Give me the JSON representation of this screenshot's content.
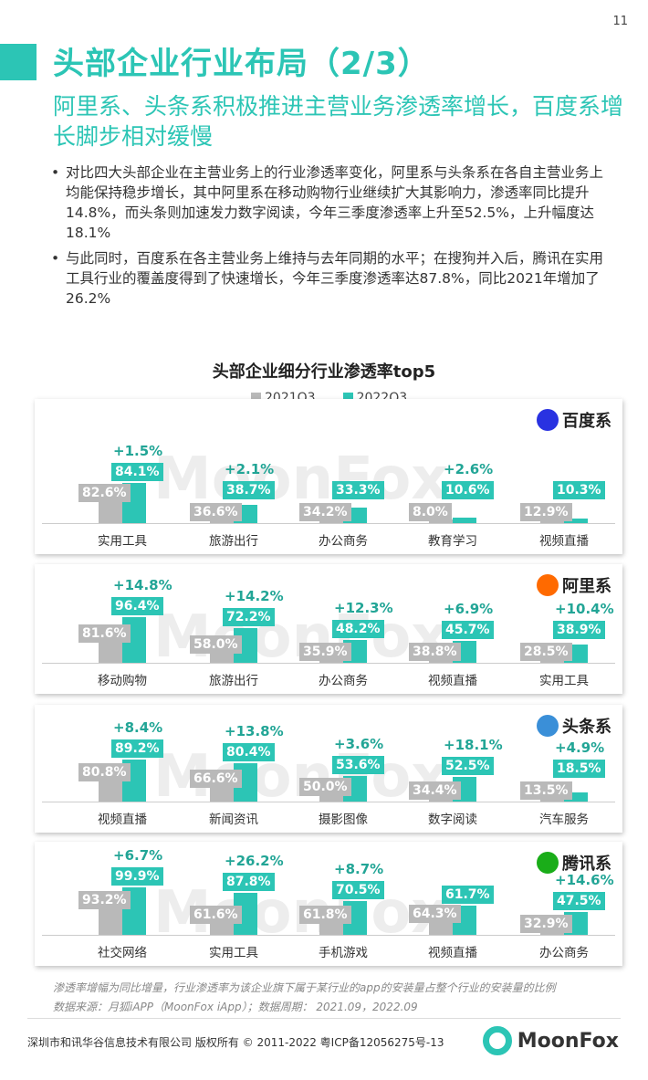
{
  "page_number": "11",
  "title": "头部企业行业布局（2/3）",
  "subtitle": "阿里系、头条系积极推进主营业务渗透率增长，百度系增长脚步相对缓慢",
  "bullets": [
    "对比四大头部企业在主营业务上的行业渗透率变化，阿里系与头条系在各自主营业务上均能保持稳步增长，其中阿里系在移动购物行业继续扩大其影响力，渗透率同比提升14.8%，而头条则加速发力数字阅读，今年三季度渗透率上升至52.5%，上升幅度达18.1%",
    "与此同时，百度系在各主营业务上维持与去年同期的水平；在搜狗并入后，腾讯在实用工具行业的覆盖度得到了快速增长，今年三季度渗透率达87.8%，同比2021年增加了26.2%"
  ],
  "watermark": "MoonFox",
  "chart_data": {
    "type": "bar",
    "title": "头部企业细分行业渗透率top5",
    "legend": [
      "2021Q3",
      "2022Q3"
    ],
    "colors": {
      "2021Q3": "#b9b9b9",
      "2022Q3": "#2cc5b5"
    },
    "panels": [
      {
        "company": "百度系",
        "logo_color": "#2932e1",
        "categories": [
          "实用工具",
          "旅游出行",
          "办公商务",
          "教育学习",
          "视频直播"
        ],
        "v2021": [
          82.6,
          36.6,
          34.2,
          8.0,
          12.9
        ],
        "v2022": [
          84.1,
          38.7,
          33.3,
          10.6,
          10.3
        ],
        "labels2021": [
          "82.6%",
          "36.6%",
          "34.2%",
          "8.0%",
          "12.9%"
        ],
        "labels2022": [
          "84.1%",
          "38.7%",
          "33.3%",
          "10.6%",
          "10.3%"
        ],
        "deltas": [
          "+1.5%",
          "+2.1%",
          "",
          "+2.6%",
          ""
        ]
      },
      {
        "company": "阿里系",
        "logo_color": "#ff6a00",
        "categories": [
          "移动购物",
          "旅游出行",
          "办公商务",
          "视频直播",
          "实用工具"
        ],
        "v2021": [
          81.6,
          58.0,
          35.9,
          38.8,
          28.5
        ],
        "v2022": [
          96.4,
          72.2,
          48.2,
          45.7,
          38.9
        ],
        "labels2021": [
          "81.6%",
          "58.0%",
          "35.9%",
          "38.8%",
          "28.5%"
        ],
        "labels2022": [
          "96.4%",
          "72.2%",
          "48.2%",
          "45.7%",
          "38.9%"
        ],
        "deltas": [
          "+14.8%",
          "+14.2%",
          "+12.3%",
          "+6.9%",
          "+10.4%"
        ]
      },
      {
        "company": "头条系",
        "logo_color": "#3a8fd8",
        "categories": [
          "视频直播",
          "新闻资讯",
          "摄影图像",
          "数字阅读",
          "汽车服务"
        ],
        "v2021": [
          80.8,
          66.6,
          50.0,
          34.4,
          13.5
        ],
        "v2022": [
          89.2,
          80.4,
          53.6,
          52.5,
          18.5
        ],
        "labels2021": [
          "80.8%",
          "66.6%",
          "50.0%",
          "34.4%",
          "13.5%"
        ],
        "labels2022": [
          "89.2%",
          "80.4%",
          "53.6%",
          "52.5%",
          "18.5%"
        ],
        "deltas": [
          "+8.4%",
          "+13.8%",
          "+3.6%",
          "+18.1%",
          "+4.9%"
        ]
      },
      {
        "company": "腾讯系",
        "logo_color": "#1aad19",
        "categories": [
          "社交网络",
          "实用工具",
          "手机游戏",
          "视频直播",
          "办公商务"
        ],
        "v2021": [
          93.2,
          61.6,
          61.8,
          64.3,
          32.9
        ],
        "v2022": [
          99.9,
          87.8,
          70.5,
          61.7,
          47.5
        ],
        "labels2021": [
          "93.2%",
          "61.6%",
          "61.8%",
          "64.3%",
          "32.9%"
        ],
        "labels2022": [
          "99.9%",
          "87.8%",
          "70.5%",
          "61.7%",
          "47.5%"
        ],
        "deltas": [
          "+6.7%",
          "+26.2%",
          "+8.7%",
          "",
          "+14.6%"
        ]
      }
    ]
  },
  "note": "渗透率增幅为同比增量，行业渗透率为该企业旗下属于某行业的app的安装量占整个行业的安装量的比例",
  "source": "数据来源：月狐iAPP（MoonFox iApp）；数据周期： 2021.09，2022.09",
  "footer": "深圳市和讯华谷信息技术有限公司 版权所有 © 2011-2022 粤ICP备12056275号-13",
  "brand": "MoonFox"
}
